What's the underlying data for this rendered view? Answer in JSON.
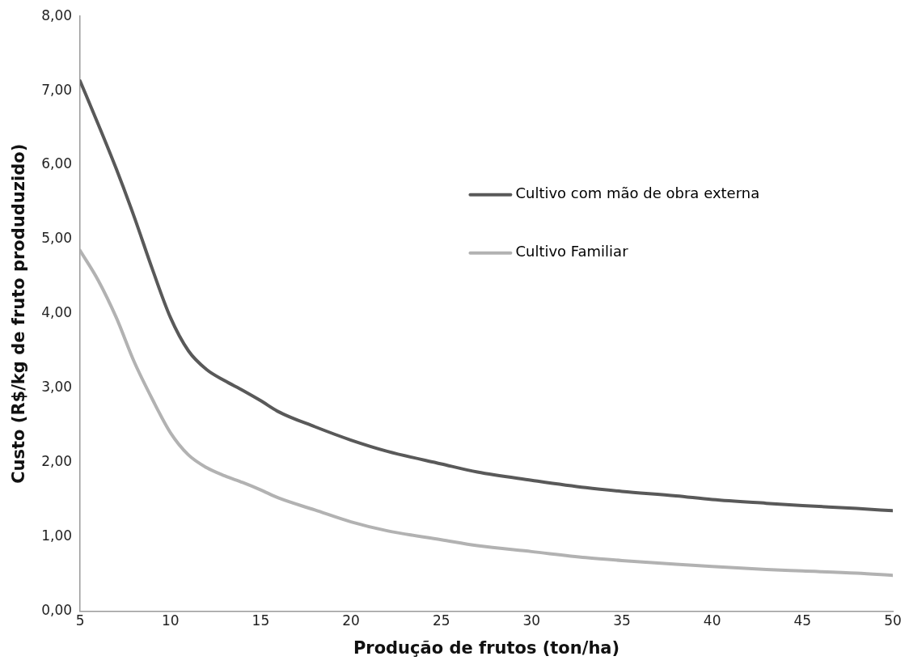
{
  "chart_data": {
    "type": "line",
    "xlabel": "Produção de frutos (ton/ha)",
    "ylabel": "Custo (R$/kg de fruto produduzido)",
    "xlim": [
      5,
      50
    ],
    "xticks": [
      5,
      10,
      15,
      20,
      25,
      30,
      35,
      40,
      45,
      50
    ],
    "ylim": [
      0,
      8
    ],
    "yticks": [
      {
        "value": 0,
        "label": "0,00"
      },
      {
        "value": 1,
        "label": "1,00"
      },
      {
        "value": 2,
        "label": "2,00"
      },
      {
        "value": 3,
        "label": "3,00"
      },
      {
        "value": 4,
        "label": "4,00"
      },
      {
        "value": 5,
        "label": "5,00"
      },
      {
        "value": 6,
        "label": "6,00"
      },
      {
        "value": 7,
        "label": "7,00"
      },
      {
        "value": 8,
        "label": "8,00"
      }
    ],
    "grid": false,
    "legend": "right",
    "marker": "none",
    "line_style": "solid",
    "series": [
      {
        "name": "Cultivo com mão de obra externa",
        "color": "#595959",
        "x": [
          5,
          6,
          7,
          8,
          9,
          10,
          11,
          12,
          13,
          14,
          15,
          16,
          18,
          20,
          22,
          25,
          27,
          30,
          33,
          35,
          38,
          40,
          43,
          45,
          48,
          50
        ],
        "values": [
          7.13,
          6.55,
          5.95,
          5.3,
          4.6,
          3.95,
          3.5,
          3.25,
          3.1,
          2.97,
          2.83,
          2.68,
          2.48,
          2.3,
          2.15,
          1.98,
          1.87,
          1.76,
          1.66,
          1.61,
          1.55,
          1.5,
          1.45,
          1.42,
          1.38,
          1.35
        ]
      },
      {
        "name": "Cultivo Familiar",
        "color": "#b2b2b2",
        "x": [
          5,
          6,
          7,
          8,
          9,
          10,
          11,
          12,
          13,
          14,
          15,
          16,
          18,
          20,
          22,
          25,
          27,
          30,
          33,
          35,
          38,
          40,
          43,
          45,
          48,
          50
        ],
        "values": [
          4.85,
          4.45,
          3.95,
          3.35,
          2.85,
          2.4,
          2.1,
          1.93,
          1.82,
          1.73,
          1.63,
          1.52,
          1.36,
          1.2,
          1.08,
          0.96,
          0.88,
          0.8,
          0.72,
          0.68,
          0.63,
          0.6,
          0.56,
          0.54,
          0.51,
          0.48
        ]
      }
    ]
  }
}
